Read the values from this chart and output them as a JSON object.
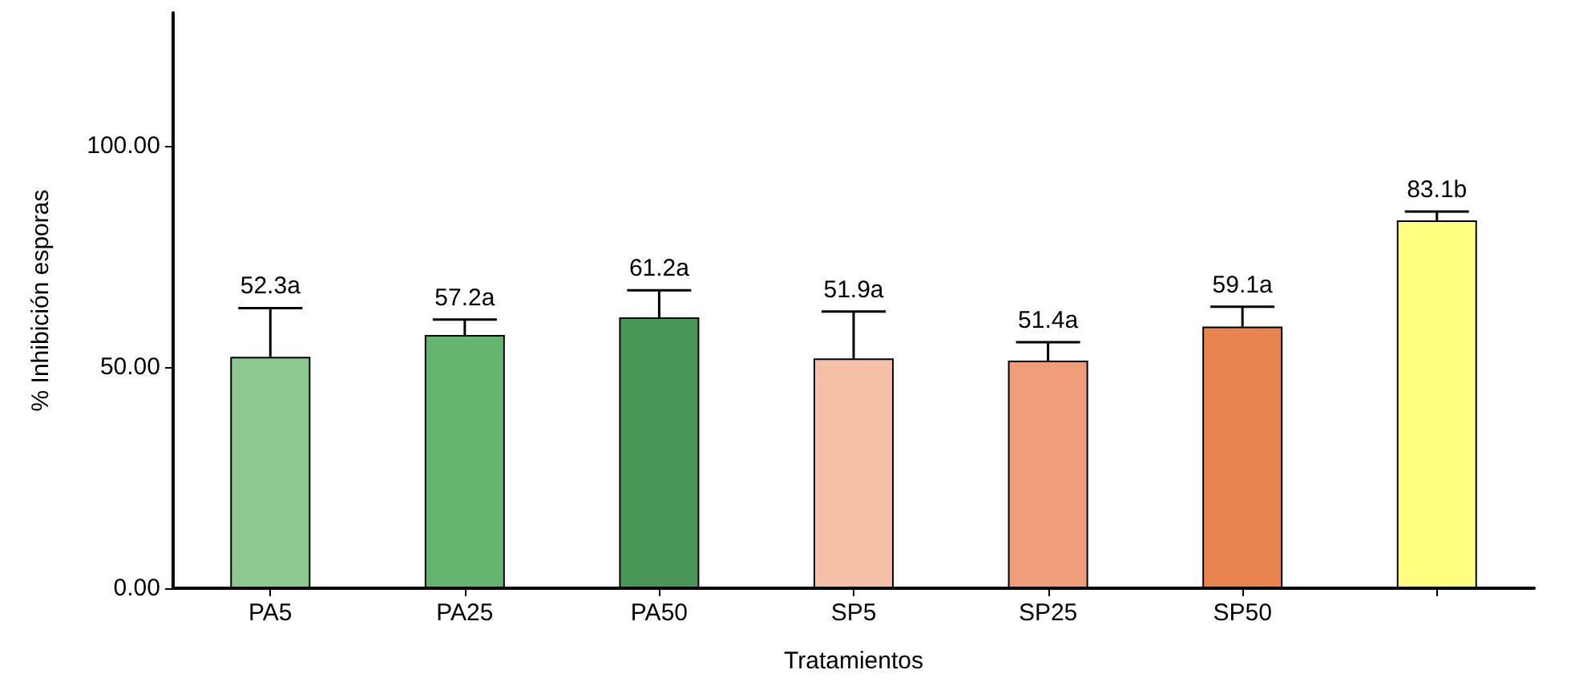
{
  "chart_data": {
    "type": "bar",
    "xlabel": "Tratamientos",
    "ylabel": "% Inhibición esporas",
    "categories": [
      "PA5",
      "PA25",
      "PA50",
      "SP5",
      "SP25",
      "SP50",
      null
    ],
    "values": [
      52.3,
      57.2,
      61.2,
      51.9,
      51.4,
      59.1,
      83.1
    ],
    "colors": [
      "#8cc890",
      "#66b56f",
      "#4a9657",
      "#f5c0a5",
      "#f09e7a",
      "#e9834f",
      "#ffff80"
    ],
    "errors": [
      [
        52.3,
        63.3
      ],
      [
        57.2,
        60.7
      ],
      [
        61.2,
        67.3
      ],
      [
        51.9,
        62.5
      ],
      [
        51.4,
        55.6
      ],
      [
        59.1,
        63.6
      ],
      [
        83.1,
        85.1
      ]
    ],
    "value_labels": [
      "52.3a",
      "57.2a",
      "61.2a",
      "51.9a",
      "51.4a",
      "59.1a",
      "83.1b"
    ],
    "ylim": [
      0,
      130
    ],
    "yticks": [
      {
        "value": 0,
        "label": "0.00"
      },
      {
        "value": 50,
        "label": "50.00"
      },
      {
        "value": 100,
        "label": "100.00"
      }
    ],
    "grid": false
  }
}
